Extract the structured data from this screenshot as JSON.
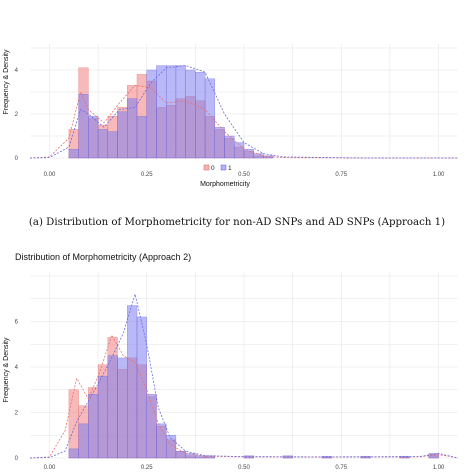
{
  "charts": [
    {
      "title": "",
      "caption": "(a) Distribution of Morphometricity for non-AD SNPs and AD SNPs (Approach 1)"
    },
    {
      "title": "Distribution of Morphometricity (Approach 2)",
      "caption": ""
    }
  ],
  "colors": {
    "class0": "#f08080",
    "class1": "#8080f0",
    "density0": "#e87070",
    "density1": "#6a6ae0"
  },
  "chart_data": [
    {
      "type": "bar",
      "title": "",
      "xlabel": "Morphometricity",
      "ylabel": "Frequency & Density",
      "xlim": [
        -0.05,
        1.05
      ],
      "ylim": [
        0,
        5
      ],
      "x_ticks": [
        "0.00",
        "0.25",
        "0.50",
        "0.75",
        "1.00"
      ],
      "y_ticks": [
        "0",
        "2",
        "4"
      ],
      "legend": {
        "placement": "top-center",
        "entries": [
          "0",
          "1"
        ]
      },
      "grid": true,
      "bin_width": 0.025,
      "bin_starts": [
        0.05,
        0.075,
        0.1,
        0.125,
        0.15,
        0.175,
        0.2,
        0.225,
        0.25,
        0.275,
        0.3,
        0.325,
        0.35,
        0.375,
        0.4,
        0.425,
        0.45,
        0.475,
        0.5,
        0.525,
        0.55
      ],
      "series": [
        {
          "name": "0",
          "values": [
            1.3,
            4.1,
            1.8,
            1.5,
            1.9,
            2.3,
            3.3,
            3.8,
            3.5,
            2.3,
            2.4,
            2.7,
            2.8,
            2.6,
            1.9,
            1.3,
            0.9,
            0.5,
            0.3,
            0.1,
            0.05
          ]
        },
        {
          "name": "1",
          "values": [
            0.4,
            2.9,
            1.9,
            1.3,
            1.2,
            2.1,
            2.7,
            1.9,
            4.0,
            4.2,
            4.2,
            4.2,
            4.0,
            3.9,
            3.6,
            1.4,
            1.0,
            0.7,
            0.4,
            0.2,
            0.1
          ]
        }
      ],
      "density": [
        {
          "name": "0",
          "x": [
            -0.05,
            0.0,
            0.05,
            0.08,
            0.1,
            0.14,
            0.18,
            0.22,
            0.26,
            0.3,
            0.35,
            0.4,
            0.45,
            0.5,
            0.55,
            0.6,
            0.8,
            1.05
          ],
          "y": [
            0,
            0.05,
            0.9,
            3.0,
            2.2,
            1.6,
            2.5,
            3.3,
            3.2,
            2.5,
            2.6,
            2.2,
            1.2,
            0.4,
            0.1,
            0.02,
            0,
            0
          ]
        },
        {
          "name": "1",
          "x": [
            -0.05,
            0.0,
            0.05,
            0.08,
            0.1,
            0.14,
            0.18,
            0.22,
            0.26,
            0.3,
            0.35,
            0.4,
            0.45,
            0.5,
            0.55,
            0.6,
            0.8,
            1.05
          ],
          "y": [
            0,
            0.02,
            0.5,
            2.2,
            2.0,
            1.4,
            2.2,
            2.3,
            3.4,
            4.1,
            4.2,
            3.9,
            2.0,
            0.7,
            0.2,
            0.05,
            0,
            0
          ]
        }
      ]
    },
    {
      "type": "bar",
      "title": "Distribution of Morphometricity (Approach 2)",
      "xlabel": "",
      "ylabel": "Frequency & Density",
      "xlim": [
        -0.05,
        1.05
      ],
      "ylim": [
        0,
        8
      ],
      "x_ticks": [
        "0.00",
        "0.25",
        "0.50",
        "0.75",
        "1.00"
      ],
      "y_ticks": [
        "0",
        "2",
        "4",
        "6"
      ],
      "grid": true,
      "bin_width": 0.025,
      "bin_starts": [
        0.05,
        0.075,
        0.1,
        0.125,
        0.15,
        0.175,
        0.2,
        0.225,
        0.25,
        0.275,
        0.3,
        0.325,
        0.35,
        0.375,
        0.4,
        0.5,
        0.6,
        0.7,
        0.8,
        0.9,
        0.975
      ],
      "series": [
        {
          "name": "0",
          "values": [
            3.0,
            2.3,
            3.1,
            4.1,
            5.3,
            3.9,
            4.4,
            4.1,
            2.7,
            1.4,
            0.8,
            0.3,
            0.1,
            0.05,
            0.05,
            0.05,
            0.05,
            0.03,
            0.03,
            0.03,
            0.15
          ]
        },
        {
          "name": "1",
          "values": [
            0.4,
            1.5,
            2.8,
            3.6,
            4.5,
            4.4,
            6.7,
            6.2,
            2.8,
            1.5,
            1.0,
            0.3,
            0.2,
            0.1,
            0.1,
            0.1,
            0.1,
            0.08,
            0.08,
            0.08,
            0.2
          ]
        }
      ],
      "density": [
        {
          "name": "0",
          "x": [
            -0.05,
            0.0,
            0.04,
            0.07,
            0.1,
            0.13,
            0.16,
            0.19,
            0.22,
            0.25,
            0.28,
            0.31,
            0.35,
            0.4,
            0.5,
            0.7,
            0.95,
            1.0,
            1.05
          ],
          "y": [
            0,
            0.05,
            1.2,
            3.5,
            2.6,
            3.8,
            5.4,
            4.5,
            4.2,
            3.0,
            1.5,
            0.6,
            0.2,
            0.08,
            0.05,
            0.04,
            0.05,
            0.15,
            0
          ]
        },
        {
          "name": "1",
          "x": [
            -0.05,
            0.0,
            0.04,
            0.07,
            0.1,
            0.13,
            0.16,
            0.19,
            0.22,
            0.25,
            0.28,
            0.31,
            0.35,
            0.4,
            0.5,
            0.7,
            0.95,
            1.0,
            1.05
          ],
          "y": [
            0,
            0.02,
            0.3,
            1.6,
            2.5,
            3.4,
            4.4,
            5.5,
            7.2,
            5.0,
            2.2,
            0.9,
            0.3,
            0.1,
            0.06,
            0.05,
            0.06,
            0.2,
            0
          ]
        }
      ]
    }
  ]
}
